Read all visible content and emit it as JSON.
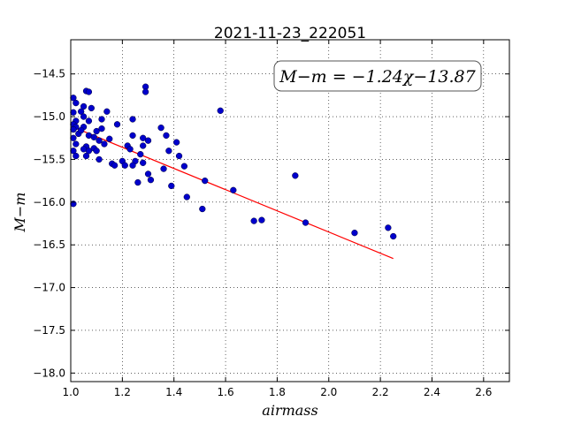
{
  "chart_data": {
    "type": "scatter",
    "title": "2021-11-23_222051",
    "xlabel": "airmass",
    "ylabel": "M−m",
    "xlim": [
      1.0,
      2.7
    ],
    "ylim": [
      -18.1,
      -14.1
    ],
    "y_inverted": true,
    "grid": true,
    "grid_style": "dotted",
    "x_ticks": [
      1.0,
      1.2,
      1.4,
      1.6,
      1.8,
      2.0,
      2.2,
      2.4,
      2.6
    ],
    "x_tick_labels": [
      "1.0",
      "1.2",
      "1.4",
      "1.6",
      "1.8",
      "2.0",
      "2.2",
      "2.4",
      "2.6"
    ],
    "y_ticks": [
      -14.5,
      -15.0,
      -15.5,
      -16.0,
      -16.5,
      -17.0,
      -17.5,
      -18.0
    ],
    "y_tick_labels": [
      "−14.5",
      "−15.0",
      "−15.5",
      "−16.0",
      "−16.5",
      "−17.0",
      "−17.5",
      "−18.0"
    ],
    "annotation": "M−m = −1.24χ−13.87",
    "fit": {
      "slope": -1.24,
      "intercept": -13.87,
      "x_range": [
        1.01,
        2.25
      ],
      "color": "#ff0000"
    },
    "series": [
      {
        "marker_color": "#0000cc",
        "points": [
          [
            1.01,
            -14.78
          ],
          [
            1.02,
            -14.84
          ],
          [
            1.01,
            -14.95
          ],
          [
            1.02,
            -15.05
          ],
          [
            1.01,
            -15.09
          ],
          [
            1.02,
            -15.12
          ],
          [
            1.01,
            -15.15
          ],
          [
            1.03,
            -15.2
          ],
          [
            1.01,
            -15.25
          ],
          [
            1.02,
            -15.32
          ],
          [
            1.01,
            -15.4
          ],
          [
            1.02,
            -15.46
          ],
          [
            1.01,
            -16.02
          ],
          [
            1.04,
            -14.94
          ],
          [
            1.05,
            -14.88
          ],
          [
            1.06,
            -14.7
          ],
          [
            1.07,
            -14.71
          ],
          [
            1.05,
            -15.0
          ],
          [
            1.07,
            -15.05
          ],
          [
            1.05,
            -15.12
          ],
          [
            1.04,
            -15.16
          ],
          [
            1.07,
            -15.22
          ],
          [
            1.06,
            -15.35
          ],
          [
            1.05,
            -15.38
          ],
          [
            1.07,
            -15.4
          ],
          [
            1.06,
            -15.46
          ],
          [
            1.08,
            -14.9
          ],
          [
            1.09,
            -15.24
          ],
          [
            1.1,
            -15.17
          ],
          [
            1.09,
            -15.37
          ],
          [
            1.1,
            -15.4
          ],
          [
            1.12,
            -15.03
          ],
          [
            1.12,
            -15.14
          ],
          [
            1.11,
            -15.28
          ],
          [
            1.13,
            -15.32
          ],
          [
            1.11,
            -15.5
          ],
          [
            1.14,
            -14.94
          ],
          [
            1.15,
            -15.26
          ],
          [
            1.16,
            -15.55
          ],
          [
            1.17,
            -15.57
          ],
          [
            1.18,
            -15.09
          ],
          [
            1.2,
            -15.52
          ],
          [
            1.21,
            -15.57
          ],
          [
            1.22,
            -15.34
          ],
          [
            1.23,
            -15.38
          ],
          [
            1.24,
            -15.03
          ],
          [
            1.24,
            -15.22
          ],
          [
            1.25,
            -15.52
          ],
          [
            1.24,
            -15.57
          ],
          [
            1.26,
            -15.77
          ],
          [
            1.27,
            -15.44
          ],
          [
            1.28,
            -15.25
          ],
          [
            1.28,
            -15.34
          ],
          [
            1.29,
            -14.65
          ],
          [
            1.29,
            -14.71
          ],
          [
            1.3,
            -15.28
          ],
          [
            1.28,
            -15.54
          ],
          [
            1.3,
            -15.67
          ],
          [
            1.31,
            -15.74
          ],
          [
            1.35,
            -15.13
          ],
          [
            1.36,
            -15.61
          ],
          [
            1.37,
            -15.22
          ],
          [
            1.38,
            -15.4
          ],
          [
            1.39,
            -15.81
          ],
          [
            1.41,
            -15.3
          ],
          [
            1.42,
            -15.46
          ],
          [
            1.44,
            -15.58
          ],
          [
            1.45,
            -15.94
          ],
          [
            1.51,
            -16.08
          ],
          [
            1.52,
            -15.75
          ],
          [
            1.58,
            -14.93
          ],
          [
            1.63,
            -15.86
          ],
          [
            1.71,
            -16.22
          ],
          [
            1.74,
            -16.21
          ],
          [
            1.87,
            -15.69
          ],
          [
            1.91,
            -16.24
          ],
          [
            2.1,
            -16.36
          ],
          [
            2.23,
            -16.3
          ],
          [
            2.25,
            -16.4
          ]
        ]
      }
    ]
  }
}
